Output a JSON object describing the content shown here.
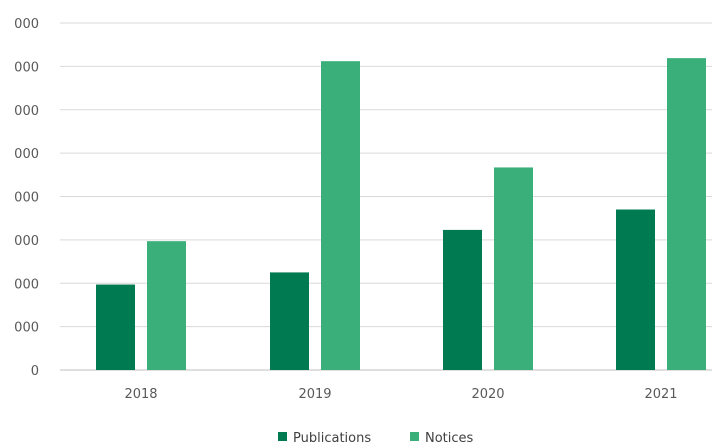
{
  "chart_data": {
    "type": "bar",
    "categories": [
      "2018",
      "2019",
      "2020",
      "2021"
    ],
    "y_tick_labels": [
      "0",
      "000",
      "000",
      "000",
      "000",
      "000",
      "000",
      "000",
      "000"
    ],
    "ylim": [
      0,
      8000
    ],
    "grid": true,
    "legend_position": "bottom",
    "series": [
      {
        "name": "Publications",
        "color": "#007a50",
        "values": [
          1970,
          2250,
          3230,
          3700
        ]
      },
      {
        "name": "Notices",
        "color": "#3aaf7a",
        "values": [
          2970,
          7120,
          4670,
          7190
        ]
      }
    ]
  }
}
